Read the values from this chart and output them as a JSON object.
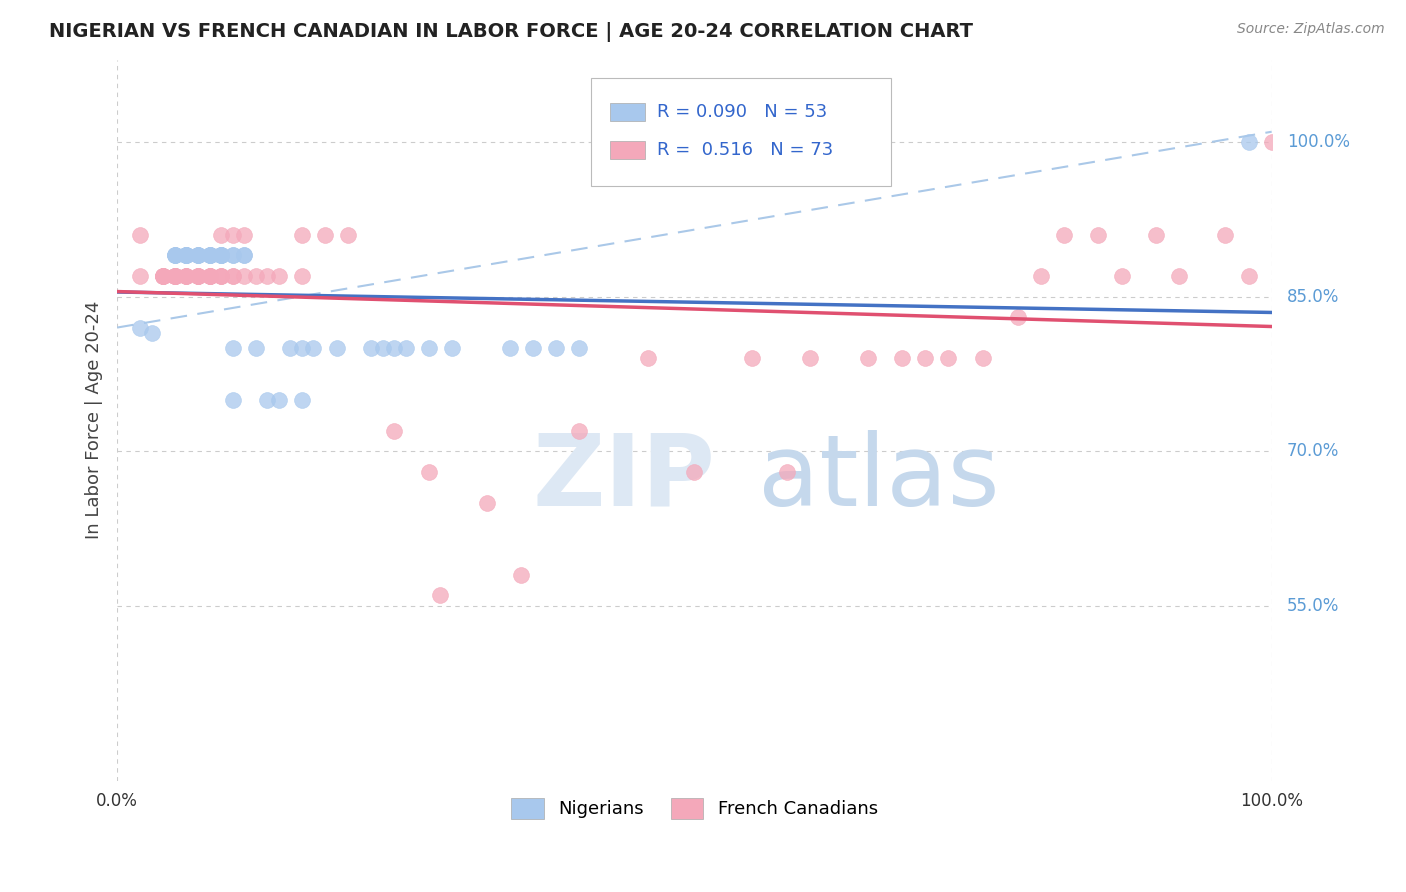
{
  "title": "NIGERIAN VS FRENCH CANADIAN IN LABOR FORCE | AGE 20-24 CORRELATION CHART",
  "source": "Source: ZipAtlas.com",
  "ylabel": "In Labor Force | Age 20-24",
  "xlim": [
    0.0,
    1.0
  ],
  "ylim": [
    0.38,
    1.08
  ],
  "y_ticks": [
    0.55,
    0.7,
    0.85,
    1.0
  ],
  "y_tick_labels": [
    "55.0%",
    "70.0%",
    "85.0%",
    "100.0%"
  ],
  "nigerian_R": 0.09,
  "nigerian_N": 53,
  "french_canadian_R": 0.516,
  "french_canadian_N": 73,
  "legend_labels": [
    "Nigerians",
    "French Canadians"
  ],
  "nigerian_color": "#a8c8ed",
  "french_canadian_color": "#f4a8ba",
  "nigerian_line_color": "#4472c4",
  "french_canadian_line_color": "#e05070",
  "dash_line_color": "#aac8e8",
  "background_color": "#ffffff",
  "grid_color": "#cccccc",
  "nigerian_x": [
    0.02,
    0.03,
    0.05,
    0.05,
    0.05,
    0.05,
    0.06,
    0.06,
    0.06,
    0.06,
    0.06,
    0.06,
    0.06,
    0.07,
    0.07,
    0.07,
    0.07,
    0.08,
    0.08,
    0.08,
    0.08,
    0.08,
    0.09,
    0.09,
    0.09,
    0.09,
    0.09,
    0.09,
    0.1,
    0.1,
    0.1,
    0.1,
    0.11,
    0.11,
    0.12,
    0.13,
    0.14,
    0.15,
    0.16,
    0.16,
    0.17,
    0.19,
    0.22,
    0.23,
    0.24,
    0.25,
    0.27,
    0.29,
    0.34,
    0.36,
    0.38,
    0.4,
    0.98
  ],
  "nigerian_y": [
    0.82,
    0.815,
    0.89,
    0.89,
    0.89,
    0.89,
    0.89,
    0.89,
    0.89,
    0.89,
    0.89,
    0.89,
    0.89,
    0.89,
    0.89,
    0.89,
    0.89,
    0.89,
    0.89,
    0.89,
    0.89,
    0.89,
    0.89,
    0.89,
    0.89,
    0.89,
    0.89,
    0.89,
    0.8,
    0.75,
    0.89,
    0.89,
    0.89,
    0.89,
    0.8,
    0.75,
    0.75,
    0.8,
    0.75,
    0.8,
    0.8,
    0.8,
    0.8,
    0.8,
    0.8,
    0.8,
    0.8,
    0.8,
    0.8,
    0.8,
    0.8,
    0.8,
    1.0
  ],
  "french_canadian_x": [
    0.02,
    0.02,
    0.04,
    0.04,
    0.04,
    0.04,
    0.04,
    0.04,
    0.05,
    0.05,
    0.05,
    0.05,
    0.05,
    0.05,
    0.05,
    0.05,
    0.05,
    0.06,
    0.06,
    0.06,
    0.06,
    0.07,
    0.07,
    0.07,
    0.07,
    0.07,
    0.08,
    0.08,
    0.08,
    0.08,
    0.08,
    0.09,
    0.09,
    0.09,
    0.09,
    0.1,
    0.1,
    0.1,
    0.11,
    0.11,
    0.12,
    0.13,
    0.14,
    0.16,
    0.16,
    0.18,
    0.2,
    0.24,
    0.27,
    0.28,
    0.32,
    0.35,
    0.4,
    0.46,
    0.5,
    0.55,
    0.58,
    0.6,
    0.65,
    0.68,
    0.7,
    0.72,
    0.75,
    0.78,
    0.8,
    0.82,
    0.85,
    0.87,
    0.9,
    0.92,
    0.96,
    0.98,
    1.0
  ],
  "french_canadian_y": [
    0.87,
    0.91,
    0.87,
    0.87,
    0.87,
    0.87,
    0.87,
    0.87,
    0.87,
    0.87,
    0.87,
    0.87,
    0.87,
    0.87,
    0.87,
    0.87,
    0.87,
    0.87,
    0.87,
    0.87,
    0.87,
    0.87,
    0.87,
    0.87,
    0.87,
    0.87,
    0.87,
    0.87,
    0.87,
    0.87,
    0.87,
    0.87,
    0.87,
    0.87,
    0.91,
    0.87,
    0.87,
    0.91,
    0.87,
    0.91,
    0.87,
    0.87,
    0.87,
    0.91,
    0.87,
    0.91,
    0.91,
    0.72,
    0.68,
    0.56,
    0.65,
    0.58,
    0.72,
    0.79,
    0.68,
    0.79,
    0.68,
    0.79,
    0.79,
    0.79,
    0.79,
    0.79,
    0.79,
    0.83,
    0.87,
    0.91,
    0.91,
    0.87,
    0.91,
    0.87,
    0.91,
    0.87,
    1.0
  ]
}
